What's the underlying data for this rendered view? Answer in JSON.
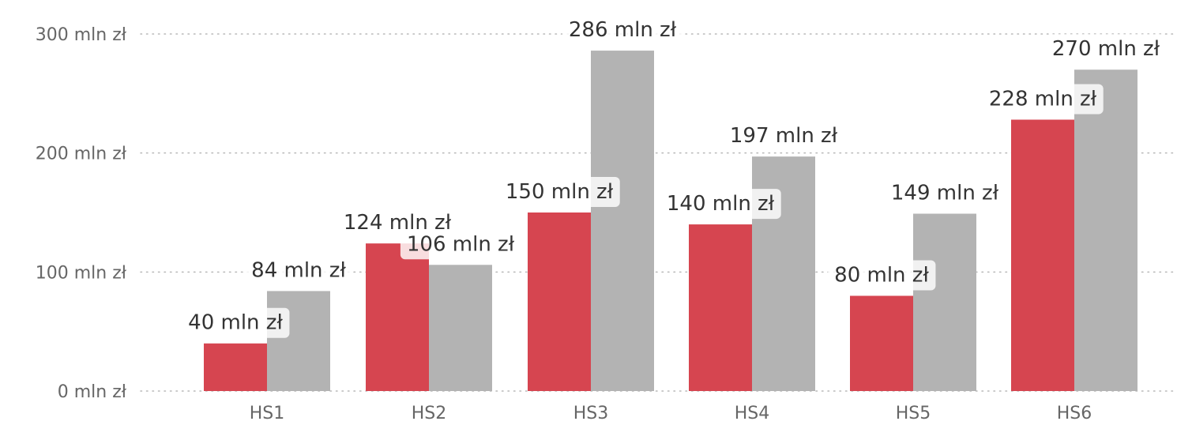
{
  "chart_data": {
    "type": "bar",
    "title": "",
    "xlabel": "",
    "ylabel": "",
    "categories": [
      "HS1",
      "HS2",
      "HS3",
      "HS4",
      "HS5",
      "HS6"
    ],
    "series": [
      {
        "color": "#d64550",
        "values": [
          40,
          124,
          150,
          140,
          80,
          228
        ],
        "labels": [
          "40 mln zł",
          "124 mln zł",
          "150 mln zł",
          "140 mln zł",
          "80 mln zł",
          "228 mln zł"
        ]
      },
      {
        "color": "#b3b3b3",
        "values": [
          84,
          106,
          286,
          197,
          149,
          270
        ],
        "labels": [
          "84 mln zł",
          "106 mln zł",
          "286 mln zł",
          "197 mln zł",
          "149 mln zł",
          "270 mln zł"
        ]
      }
    ],
    "ylim": [
      0,
      300
    ],
    "yticks": [
      {
        "value": 0,
        "label": "0 mln zł"
      },
      {
        "value": 100,
        "label": "100 mln zł"
      },
      {
        "value": 200,
        "label": "200 mln zł"
      },
      {
        "value": 300,
        "label": "300 mln zł"
      }
    ],
    "grid": true,
    "grid_style": "dotted",
    "legend": "none"
  }
}
